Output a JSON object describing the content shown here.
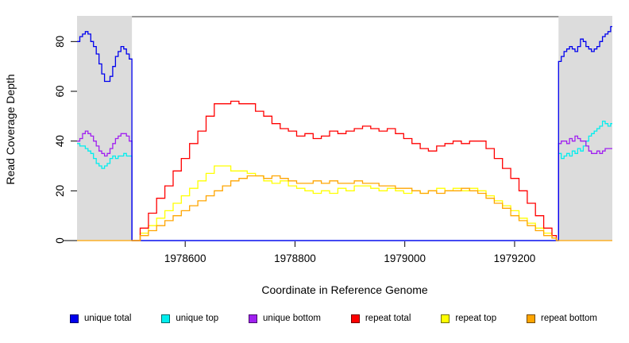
{
  "chart_data": {
    "type": "line",
    "title": "",
    "xlabel": "Coordinate in Reference Genome",
    "ylabel": "Read Coverage Depth",
    "xlim": [
      1978403,
      1979378
    ],
    "ylim": [
      0,
      90
    ],
    "x_ticks": [
      1978600,
      1978800,
      1979000,
      1979200
    ],
    "y_ticks": [
      0,
      20,
      40,
      60,
      80
    ],
    "grid": false,
    "legend_position": "bottom",
    "axis_color": "#000000",
    "shaded_regions": [
      {
        "name": "left-flank",
        "x0": 1978403,
        "x1": 1978503,
        "color": "#DCDCDC"
      },
      {
        "name": "right-flank",
        "x0": 1979280,
        "x1": 1979378,
        "color": "#DCDCDC"
      }
    ],
    "series": [
      {
        "name": "unique top",
        "color": "#00EEEE",
        "points": [
          [
            1978403,
            39
          ],
          [
            1978408,
            38
          ],
          [
            1978413,
            38
          ],
          [
            1978418,
            37
          ],
          [
            1978423,
            36
          ],
          [
            1978428,
            35
          ],
          [
            1978433,
            33
          ],
          [
            1978438,
            31
          ],
          [
            1978443,
            30
          ],
          [
            1978448,
            29
          ],
          [
            1978453,
            30
          ],
          [
            1978458,
            31
          ],
          [
            1978463,
            33
          ],
          [
            1978468,
            34
          ],
          [
            1978473,
            33
          ],
          [
            1978478,
            34
          ],
          [
            1978483,
            34
          ],
          [
            1978488,
            35
          ],
          [
            1978493,
            34
          ],
          [
            1978498,
            34
          ],
          [
            1978503,
            33
          ],
          [
            1978503,
            0
          ],
          [
            1979280,
            0
          ],
          [
            1979280,
            35
          ],
          [
            1979285,
            33
          ],
          [
            1979290,
            34
          ],
          [
            1979295,
            35
          ],
          [
            1979300,
            34
          ],
          [
            1979305,
            36
          ],
          [
            1979310,
            35
          ],
          [
            1979315,
            37
          ],
          [
            1979320,
            36
          ],
          [
            1979325,
            38
          ],
          [
            1979330,
            40
          ],
          [
            1979335,
            42
          ],
          [
            1979340,
            43
          ],
          [
            1979345,
            44
          ],
          [
            1979350,
            45
          ],
          [
            1979355,
            46
          ],
          [
            1979360,
            48
          ],
          [
            1979365,
            47
          ],
          [
            1979370,
            46
          ],
          [
            1979375,
            47
          ],
          [
            1979378,
            47
          ]
        ]
      },
      {
        "name": "unique bottom",
        "color": "#A020F0",
        "points": [
          [
            1978403,
            40
          ],
          [
            1978408,
            41
          ],
          [
            1978413,
            43
          ],
          [
            1978418,
            44
          ],
          [
            1978423,
            43
          ],
          [
            1978428,
            42
          ],
          [
            1978433,
            40
          ],
          [
            1978438,
            38
          ],
          [
            1978443,
            36
          ],
          [
            1978448,
            35
          ],
          [
            1978453,
            34
          ],
          [
            1978458,
            35
          ],
          [
            1978463,
            37
          ],
          [
            1978468,
            39
          ],
          [
            1978473,
            41
          ],
          [
            1978478,
            42
          ],
          [
            1978483,
            43
          ],
          [
            1978488,
            43
          ],
          [
            1978493,
            42
          ],
          [
            1978498,
            40
          ],
          [
            1978503,
            38
          ],
          [
            1978503,
            0
          ],
          [
            1979280,
            0
          ],
          [
            1979280,
            39
          ],
          [
            1979285,
            40
          ],
          [
            1979290,
            40
          ],
          [
            1979295,
            39
          ],
          [
            1979300,
            41
          ],
          [
            1979305,
            40
          ],
          [
            1979310,
            42
          ],
          [
            1979315,
            41
          ],
          [
            1979320,
            40
          ],
          [
            1979325,
            40
          ],
          [
            1979330,
            38
          ],
          [
            1979335,
            36
          ],
          [
            1979340,
            35
          ],
          [
            1979345,
            35
          ],
          [
            1979350,
            36
          ],
          [
            1979355,
            35
          ],
          [
            1979360,
            36
          ],
          [
            1979365,
            37
          ],
          [
            1979370,
            37
          ],
          [
            1979375,
            37
          ],
          [
            1979378,
            37
          ]
        ]
      },
      {
        "name": "unique total",
        "color": "#0000EE",
        "points": [
          [
            1978403,
            80
          ],
          [
            1978408,
            82
          ],
          [
            1978413,
            83
          ],
          [
            1978418,
            84
          ],
          [
            1978423,
            83
          ],
          [
            1978428,
            80
          ],
          [
            1978433,
            78
          ],
          [
            1978438,
            75
          ],
          [
            1978443,
            71
          ],
          [
            1978448,
            67
          ],
          [
            1978453,
            64
          ],
          [
            1978458,
            64
          ],
          [
            1978463,
            66
          ],
          [
            1978468,
            70
          ],
          [
            1978473,
            74
          ],
          [
            1978478,
            76
          ],
          [
            1978483,
            78
          ],
          [
            1978488,
            77
          ],
          [
            1978493,
            75
          ],
          [
            1978498,
            73
          ],
          [
            1978503,
            72
          ],
          [
            1978503,
            0
          ],
          [
            1979280,
            0
          ],
          [
            1979280,
            72
          ],
          [
            1979285,
            74
          ],
          [
            1979290,
            76
          ],
          [
            1979295,
            77
          ],
          [
            1979300,
            78
          ],
          [
            1979305,
            77
          ],
          [
            1979310,
            76
          ],
          [
            1979315,
            78
          ],
          [
            1979320,
            81
          ],
          [
            1979325,
            80
          ],
          [
            1979330,
            78
          ],
          [
            1979335,
            77
          ],
          [
            1979340,
            76
          ],
          [
            1979345,
            77
          ],
          [
            1979350,
            78
          ],
          [
            1979355,
            80
          ],
          [
            1979360,
            82
          ],
          [
            1979365,
            83
          ],
          [
            1979370,
            84
          ],
          [
            1979375,
            86
          ],
          [
            1979378,
            86
          ]
        ]
      },
      {
        "name": "repeat top",
        "color": "#FFFF00",
        "points": [
          [
            1978503,
            0
          ],
          [
            1978518,
            3
          ],
          [
            1978533,
            6
          ],
          [
            1978548,
            9
          ],
          [
            1978563,
            12
          ],
          [
            1978578,
            15
          ],
          [
            1978593,
            18
          ],
          [
            1978608,
            21
          ],
          [
            1978623,
            24
          ],
          [
            1978638,
            27
          ],
          [
            1978653,
            30
          ],
          [
            1978668,
            30
          ],
          [
            1978683,
            28
          ],
          [
            1978698,
            28
          ],
          [
            1978713,
            27
          ],
          [
            1978728,
            26
          ],
          [
            1978743,
            24
          ],
          [
            1978758,
            23
          ],
          [
            1978773,
            24
          ],
          [
            1978788,
            22
          ],
          [
            1978803,
            21
          ],
          [
            1978818,
            20
          ],
          [
            1978833,
            19
          ],
          [
            1978848,
            20
          ],
          [
            1978863,
            19
          ],
          [
            1978878,
            21
          ],
          [
            1978893,
            20
          ],
          [
            1978908,
            22
          ],
          [
            1978923,
            22
          ],
          [
            1978938,
            21
          ],
          [
            1978953,
            20
          ],
          [
            1978968,
            21
          ],
          [
            1978983,
            20
          ],
          [
            1978998,
            19
          ],
          [
            1979013,
            20
          ],
          [
            1979028,
            19
          ],
          [
            1979043,
            20
          ],
          [
            1979058,
            21
          ],
          [
            1979073,
            20
          ],
          [
            1979088,
            21
          ],
          [
            1979103,
            20
          ],
          [
            1979118,
            21
          ],
          [
            1979133,
            20
          ],
          [
            1979148,
            18
          ],
          [
            1979163,
            16
          ],
          [
            1979178,
            14
          ],
          [
            1979193,
            12
          ],
          [
            1979208,
            9
          ],
          [
            1979223,
            7
          ],
          [
            1979238,
            5
          ],
          [
            1979253,
            3
          ],
          [
            1979268,
            1
          ],
          [
            1979276,
            0
          ]
        ]
      },
      {
        "name": "repeat total",
        "color": "#FF0000",
        "points": [
          [
            1978503,
            0
          ],
          [
            1978518,
            5
          ],
          [
            1978533,
            11
          ],
          [
            1978548,
            17
          ],
          [
            1978563,
            22
          ],
          [
            1978578,
            28
          ],
          [
            1978593,
            33
          ],
          [
            1978608,
            39
          ],
          [
            1978623,
            44
          ],
          [
            1978638,
            50
          ],
          [
            1978653,
            55
          ],
          [
            1978668,
            55
          ],
          [
            1978683,
            56
          ],
          [
            1978698,
            55
          ],
          [
            1978713,
            55
          ],
          [
            1978728,
            52
          ],
          [
            1978743,
            50
          ],
          [
            1978758,
            47
          ],
          [
            1978773,
            45
          ],
          [
            1978788,
            44
          ],
          [
            1978803,
            42
          ],
          [
            1978818,
            43
          ],
          [
            1978833,
            41
          ],
          [
            1978848,
            42
          ],
          [
            1978863,
            44
          ],
          [
            1978878,
            43
          ],
          [
            1978893,
            44
          ],
          [
            1978908,
            45
          ],
          [
            1978923,
            46
          ],
          [
            1978938,
            45
          ],
          [
            1978953,
            44
          ],
          [
            1978968,
            45
          ],
          [
            1978983,
            43
          ],
          [
            1978998,
            41
          ],
          [
            1979013,
            39
          ],
          [
            1979028,
            37
          ],
          [
            1979043,
            36
          ],
          [
            1979058,
            38
          ],
          [
            1979073,
            39
          ],
          [
            1979088,
            40
          ],
          [
            1979103,
            39
          ],
          [
            1979118,
            40
          ],
          [
            1979133,
            40
          ],
          [
            1979148,
            37
          ],
          [
            1979163,
            33
          ],
          [
            1979178,
            29
          ],
          [
            1979193,
            25
          ],
          [
            1979208,
            20
          ],
          [
            1979223,
            15
          ],
          [
            1979238,
            10
          ],
          [
            1979253,
            5
          ],
          [
            1979268,
            2
          ],
          [
            1979276,
            0
          ]
        ]
      },
      {
        "name": "repeat bottom",
        "color": "#FFA500",
        "points": [
          [
            1978403,
            0
          ],
          [
            1978503,
            0
          ],
          [
            1978518,
            2
          ],
          [
            1978533,
            4
          ],
          [
            1978548,
            6
          ],
          [
            1978563,
            8
          ],
          [
            1978578,
            10
          ],
          [
            1978593,
            12
          ],
          [
            1978608,
            14
          ],
          [
            1978623,
            16
          ],
          [
            1978638,
            18
          ],
          [
            1978653,
            20
          ],
          [
            1978668,
            22
          ],
          [
            1978683,
            24
          ],
          [
            1978698,
            25
          ],
          [
            1978713,
            26
          ],
          [
            1978728,
            26
          ],
          [
            1978743,
            25
          ],
          [
            1978758,
            26
          ],
          [
            1978773,
            25
          ],
          [
            1978788,
            24
          ],
          [
            1978803,
            23
          ],
          [
            1978818,
            23
          ],
          [
            1978833,
            24
          ],
          [
            1978848,
            23
          ],
          [
            1978863,
            24
          ],
          [
            1978878,
            23
          ],
          [
            1978893,
            23
          ],
          [
            1978908,
            24
          ],
          [
            1978923,
            23
          ],
          [
            1978938,
            23
          ],
          [
            1978953,
            22
          ],
          [
            1978968,
            22
          ],
          [
            1978983,
            21
          ],
          [
            1978998,
            21
          ],
          [
            1979013,
            20
          ],
          [
            1979028,
            19
          ],
          [
            1979043,
            20
          ],
          [
            1979058,
            19
          ],
          [
            1979073,
            20
          ],
          [
            1979088,
            20
          ],
          [
            1979103,
            21
          ],
          [
            1979118,
            20
          ],
          [
            1979133,
            19
          ],
          [
            1979148,
            17
          ],
          [
            1979163,
            15
          ],
          [
            1979178,
            13
          ],
          [
            1979193,
            10
          ],
          [
            1979208,
            8
          ],
          [
            1979223,
            6
          ],
          [
            1979238,
            4
          ],
          [
            1979253,
            2
          ],
          [
            1979268,
            1
          ],
          [
            1979276,
            0
          ],
          [
            1979378,
            0
          ]
        ]
      }
    ]
  },
  "legend": {
    "items": [
      {
        "label": "unique total",
        "color": "#0000EE"
      },
      {
        "label": "unique top",
        "color": "#00EEEE"
      },
      {
        "label": "unique bottom",
        "color": "#A020F0"
      },
      {
        "label": "repeat total",
        "color": "#FF0000"
      },
      {
        "label": "repeat top",
        "color": "#FFFF00"
      },
      {
        "label": "repeat bottom",
        "color": "#FFA500"
      }
    ]
  }
}
